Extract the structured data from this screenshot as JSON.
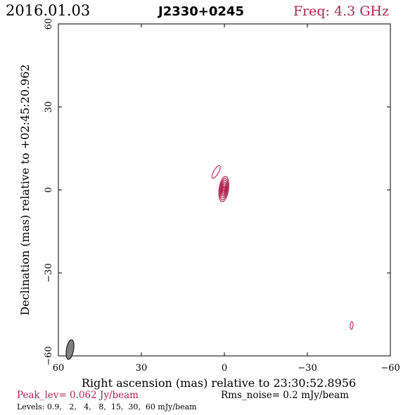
{
  "header": {
    "date": "2016.01.03",
    "source": "J2330+0245",
    "freq": "Freq: 4.3 GHz"
  },
  "footer": {
    "peak": "Peak_lev=  0.062 Jy/beam",
    "rms": "Rms_noise=  0.2 mJy/beam",
    "levels": "Levels: 0.9,   2,   4,   8,  15,  30,  60 mJy/beam"
  },
  "colors": {
    "accent": "#b0284f",
    "contour": "#b0284f",
    "beam_fill": "#808080",
    "axis": "#000000"
  },
  "chart_data": {
    "type": "contour",
    "xlabel": "Right ascension (mas) relative to 23:30:52.8956",
    "ylabel": "Declination (mas) relative to +02:45:20.962",
    "xlim": [
      60,
      -60
    ],
    "ylim": [
      -60,
      60
    ],
    "xticks": [
      60,
      30,
      0,
      -30,
      -60
    ],
    "yticks": [
      60,
      30,
      0,
      -30,
      -60
    ],
    "xtick_labels": [
      "60",
      "30",
      "0",
      "−30",
      "−60"
    ],
    "ytick_labels": [
      "60",
      "30",
      "0",
      "−30",
      "−60"
    ],
    "grid": false,
    "contour_levels_mJy_per_beam": [
      0.9,
      2,
      4,
      8,
      15,
      30,
      60
    ],
    "core": {
      "center": [
        0.2,
        0.3
      ],
      "contours": [
        {
          "level": 0.9,
          "semi_major": 4.6,
          "semi_minor": 1.7,
          "angle_deg": 8
        },
        {
          "level": 2,
          "semi_major": 3.9,
          "semi_minor": 1.4,
          "angle_deg": 8
        },
        {
          "level": 4,
          "semi_major": 3.2,
          "semi_minor": 1.15,
          "angle_deg": 8
        },
        {
          "level": 8,
          "semi_major": 2.5,
          "semi_minor": 0.9,
          "angle_deg": 8
        },
        {
          "level": 15,
          "semi_major": 1.9,
          "semi_minor": 0.68,
          "angle_deg": 8
        },
        {
          "level": 30,
          "semi_major": 1.25,
          "semi_minor": 0.45,
          "angle_deg": 8
        },
        {
          "level": 60,
          "semi_major": 0.65,
          "semi_minor": 0.25,
          "angle_deg": 8
        }
      ]
    },
    "jet": {
      "center": [
        3.0,
        6.5
      ],
      "semi_major": 2.6,
      "semi_minor": 0.9,
      "angle_deg": 30,
      "level": 0.9
    },
    "noise_blob": {
      "center": [
        -46,
        -49
      ],
      "semi_major": 1.4,
      "semi_minor": 0.5,
      "angle_deg": 5,
      "level": 0.9
    },
    "beam": {
      "center": [
        55.8,
        -57.7
      ],
      "major_mas": 3.6,
      "minor_mas": 1.3,
      "angle_deg": 10
    }
  }
}
